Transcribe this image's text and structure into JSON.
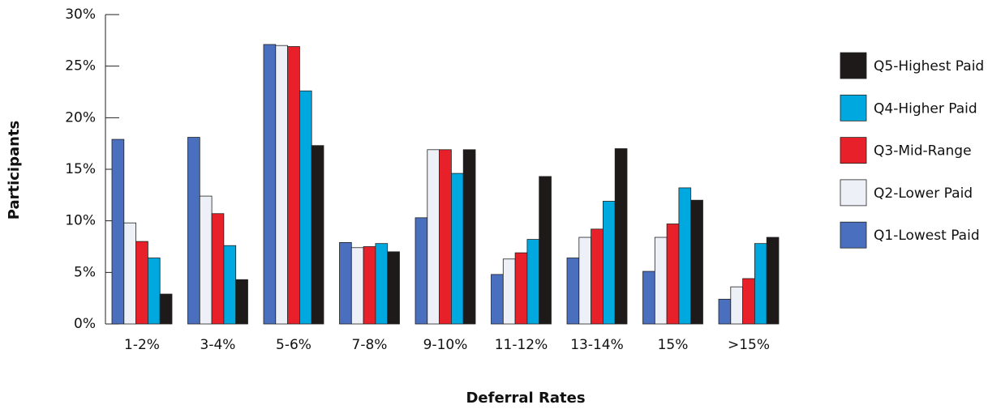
{
  "chart_data": {
    "type": "bar",
    "xlabel": "Deferral Rates",
    "ylabel": "Participants",
    "categories": [
      "1-2%",
      "3-4%",
      "5-6%",
      "7-8%",
      "9-10%",
      "11-12%",
      "13-14%",
      "15%",
      ">15%"
    ],
    "series": [
      {
        "name": "Q1-Lowest Paid",
        "color": "#4a6fbf",
        "values": [
          17.9,
          18.1,
          27.1,
          7.9,
          10.3,
          4.8,
          6.4,
          5.1,
          2.4
        ]
      },
      {
        "name": "Q2-Lower Paid",
        "color": "#eef0f8",
        "values": [
          9.8,
          12.4,
          27.0,
          7.4,
          16.9,
          6.3,
          8.4,
          8.4,
          3.6
        ]
      },
      {
        "name": "Q3-Mid-Range",
        "color": "#e8202a",
        "values": [
          8.0,
          10.7,
          26.9,
          7.5,
          16.9,
          6.9,
          9.2,
          9.7,
          4.4
        ]
      },
      {
        "name": "Q4-Higher Paid",
        "color": "#00a8e0",
        "values": [
          6.4,
          7.6,
          22.6,
          7.8,
          14.6,
          8.2,
          11.9,
          13.2,
          7.8
        ]
      },
      {
        "name": "Q5-Highest Paid",
        "color": "#1e1a1a",
        "values": [
          2.9,
          4.3,
          17.3,
          7.0,
          16.9,
          14.3,
          17.0,
          12.0,
          8.4
        ]
      }
    ],
    "ylim": [
      0,
      30
    ],
    "yticks": [
      {
        "value": 0,
        "label": "0%"
      },
      {
        "value": 5,
        "label": "5%"
      },
      {
        "value": 10,
        "label": "10%"
      },
      {
        "value": 15,
        "label": "15%"
      },
      {
        "value": 20,
        "label": "20%"
      },
      {
        "value": 25,
        "label": "25%"
      },
      {
        "value": 30,
        "label": "30%"
      }
    ],
    "legend": "right"
  }
}
